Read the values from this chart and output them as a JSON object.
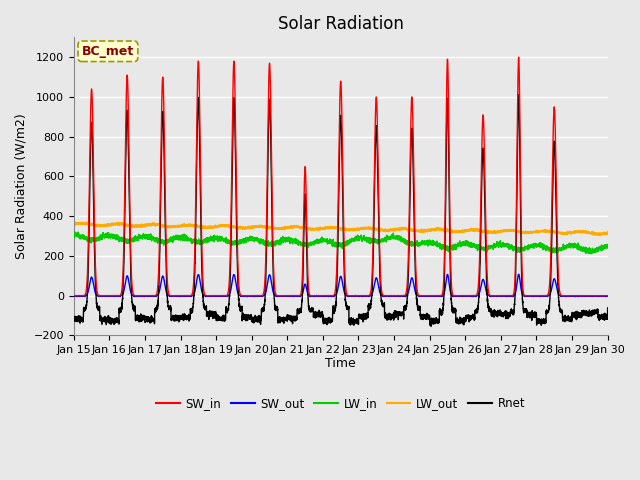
{
  "title": "Solar Radiation",
  "xlabel": "Time",
  "ylabel": "Solar Radiation (W/m2)",
  "ylim": [
    -200,
    1300
  ],
  "yticks": [
    -200,
    0,
    200,
    400,
    600,
    800,
    1000,
    1200
  ],
  "annotation": "BC_met",
  "legend_entries": [
    "SW_in",
    "SW_out",
    "LW_in",
    "LW_out",
    "Rnet"
  ],
  "line_colors": {
    "SW_in": "#ff0000",
    "SW_out": "#0000ff",
    "LW_in": "#00cc00",
    "LW_out": "#ffaa00",
    "Rnet": "#000000"
  },
  "start_day": 15,
  "end_day": 30,
  "num_points": 5400,
  "background_color": "#e8e8e8",
  "plot_bg_color": "#e8e8e8",
  "grid_color": "#ffffff",
  "title_fontsize": 12,
  "label_fontsize": 9,
  "tick_fontsize": 8
}
